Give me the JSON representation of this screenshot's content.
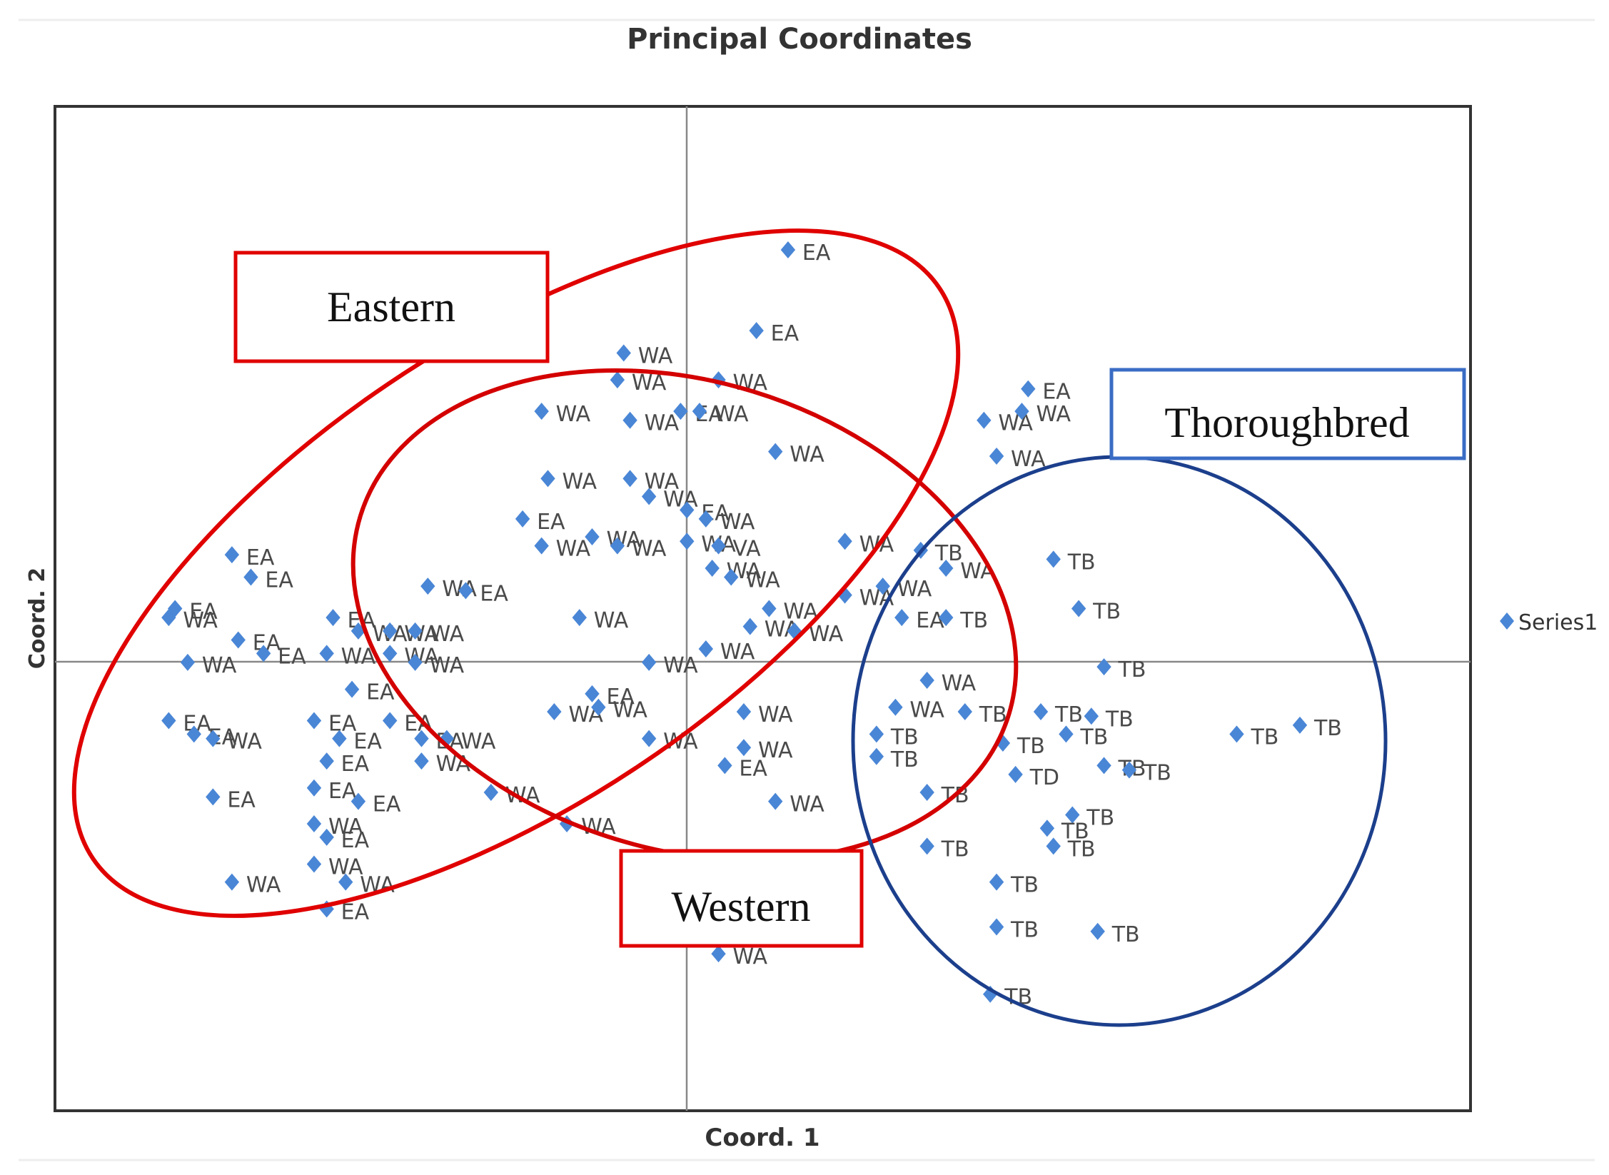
{
  "chart_data": {
    "type": "scatter",
    "title": "Principal Coordinates",
    "xlabel": "Coord. 1",
    "ylabel": "Coord. 2",
    "legend": {
      "label": "Series1",
      "placement": "right"
    },
    "xlim": [
      -1,
      1.24
    ],
    "ylim": [
      -1,
      1.24
    ],
    "grid": false,
    "marker_color": "#4a86d6",
    "label_color": "#4a4a4a",
    "series": [
      {
        "name": "Series1",
        "points": [
          {
            "x": 0.16,
            "y": 0.92,
            "label": "EA"
          },
          {
            "x": 0.11,
            "y": 0.74,
            "label": "EA"
          },
          {
            "x": -0.1,
            "y": 0.69,
            "label": "WA"
          },
          {
            "x": -0.11,
            "y": 0.63,
            "label": "WA"
          },
          {
            "x": 0.05,
            "y": 0.63,
            "label": "WA"
          },
          {
            "x": -0.23,
            "y": 0.56,
            "label": "WA"
          },
          {
            "x": -0.09,
            "y": 0.54,
            "label": "WA"
          },
          {
            "x": -0.01,
            "y": 0.56,
            "label": "EA"
          },
          {
            "x": 0.02,
            "y": 0.56,
            "label": "WA"
          },
          {
            "x": 0.14,
            "y": 0.47,
            "label": "WA"
          },
          {
            "x": -0.22,
            "y": 0.41,
            "label": "WA"
          },
          {
            "x": -0.09,
            "y": 0.41,
            "label": "WA"
          },
          {
            "x": -0.06,
            "y": 0.37,
            "label": "WA"
          },
          {
            "x": 0.0,
            "y": 0.34,
            "label": "EA"
          },
          {
            "x": 0.03,
            "y": 0.32,
            "label": "WA"
          },
          {
            "x": -0.26,
            "y": 0.32,
            "label": "EA"
          },
          {
            "x": -0.23,
            "y": 0.26,
            "label": "WA"
          },
          {
            "x": -0.15,
            "y": 0.28,
            "label": "WA"
          },
          {
            "x": -0.11,
            "y": 0.26,
            "label": "WA"
          },
          {
            "x": 0.0,
            "y": 0.27,
            "label": "WA"
          },
          {
            "x": 0.05,
            "y": 0.26,
            "label": "VA"
          },
          {
            "x": 0.04,
            "y": 0.21,
            "label": "WA"
          },
          {
            "x": 0.07,
            "y": 0.19,
            "label": "WA"
          },
          {
            "x": 0.25,
            "y": 0.27,
            "label": "WA"
          },
          {
            "x": -0.72,
            "y": 0.24,
            "label": "EA"
          },
          {
            "x": -0.69,
            "y": 0.19,
            "label": "EA"
          },
          {
            "x": -0.81,
            "y": 0.12,
            "label": "EA"
          },
          {
            "x": -0.82,
            "y": 0.1,
            "label": "WA"
          },
          {
            "x": -0.79,
            "y": 0.0,
            "label": "WA"
          },
          {
            "x": -0.71,
            "y": 0.05,
            "label": "EA"
          },
          {
            "x": -0.67,
            "y": 0.02,
            "label": "EA"
          },
          {
            "x": -0.57,
            "y": 0.02,
            "label": "WA"
          },
          {
            "x": -0.56,
            "y": 0.1,
            "label": "EA"
          },
          {
            "x": -0.52,
            "y": 0.07,
            "label": "WA"
          },
          {
            "x": -0.47,
            "y": 0.07,
            "label": "WA"
          },
          {
            "x": -0.43,
            "y": 0.07,
            "label": "WA"
          },
          {
            "x": -0.47,
            "y": 0.02,
            "label": "WA"
          },
          {
            "x": -0.43,
            "y": 0.0,
            "label": "WA"
          },
          {
            "x": -0.41,
            "y": 0.17,
            "label": "WA"
          },
          {
            "x": -0.35,
            "y": 0.16,
            "label": "EA"
          },
          {
            "x": -0.17,
            "y": 0.1,
            "label": "WA"
          },
          {
            "x": -0.06,
            "y": 0.0,
            "label": "WA"
          },
          {
            "x": 0.03,
            "y": 0.03,
            "label": "WA"
          },
          {
            "x": 0.1,
            "y": 0.08,
            "label": "WA"
          },
          {
            "x": 0.13,
            "y": 0.12,
            "label": "WA"
          },
          {
            "x": 0.17,
            "y": 0.07,
            "label": "WA"
          },
          {
            "x": 0.25,
            "y": 0.15,
            "label": "WA"
          },
          {
            "x": 0.31,
            "y": 0.17,
            "label": "WA"
          },
          {
            "x": 0.34,
            "y": 0.1,
            "label": "EA"
          },
          {
            "x": 0.41,
            "y": 0.1,
            "label": "TB"
          },
          {
            "x": 0.41,
            "y": 0.21,
            "label": "WA"
          },
          {
            "x": 0.37,
            "y": 0.25,
            "label": "TB"
          },
          {
            "x": 0.47,
            "y": 0.54,
            "label": "WA"
          },
          {
            "x": 0.49,
            "y": 0.46,
            "label": "WA"
          },
          {
            "x": 0.54,
            "y": 0.61,
            "label": "EA"
          },
          {
            "x": 0.53,
            "y": 0.56,
            "label": "WA"
          },
          {
            "x": 0.58,
            "y": 0.23,
            "label": "TB"
          },
          {
            "x": 0.62,
            "y": 0.12,
            "label": "TB"
          },
          {
            "x": 0.66,
            "y": -0.01,
            "label": "TB"
          },
          {
            "x": -0.82,
            "y": -0.13,
            "label": "EA"
          },
          {
            "x": -0.78,
            "y": -0.16,
            "label": "EA"
          },
          {
            "x": -0.75,
            "y": -0.17,
            "label": "WA"
          },
          {
            "x": -0.59,
            "y": -0.13,
            "label": "EA"
          },
          {
            "x": -0.53,
            "y": -0.06,
            "label": "EA"
          },
          {
            "x": -0.55,
            "y": -0.17,
            "label": "EA"
          },
          {
            "x": -0.47,
            "y": -0.13,
            "label": "EA"
          },
          {
            "x": -0.42,
            "y": -0.17,
            "label": "EA"
          },
          {
            "x": -0.38,
            "y": -0.17,
            "label": "WA"
          },
          {
            "x": -0.57,
            "y": -0.22,
            "label": "EA"
          },
          {
            "x": -0.75,
            "y": -0.3,
            "label": "EA"
          },
          {
            "x": -0.59,
            "y": -0.28,
            "label": "EA"
          },
          {
            "x": -0.52,
            "y": -0.31,
            "label": "EA"
          },
          {
            "x": -0.59,
            "y": -0.36,
            "label": "WA"
          },
          {
            "x": -0.57,
            "y": -0.39,
            "label": "EA"
          },
          {
            "x": -0.59,
            "y": -0.45,
            "label": "WA"
          },
          {
            "x": -0.54,
            "y": -0.49,
            "label": "WA"
          },
          {
            "x": -0.72,
            "y": -0.49,
            "label": "WA"
          },
          {
            "x": -0.57,
            "y": -0.55,
            "label": "EA"
          },
          {
            "x": -0.42,
            "y": -0.22,
            "label": "WA"
          },
          {
            "x": -0.31,
            "y": -0.29,
            "label": "WA"
          },
          {
            "x": -0.21,
            "y": -0.11,
            "label": "WA"
          },
          {
            "x": -0.15,
            "y": -0.07,
            "label": "EA"
          },
          {
            "x": -0.14,
            "y": -0.1,
            "label": "WA"
          },
          {
            "x": -0.19,
            "y": -0.36,
            "label": "WA"
          },
          {
            "x": -0.06,
            "y": -0.17,
            "label": "WA"
          },
          {
            "x": 0.09,
            "y": -0.11,
            "label": "WA"
          },
          {
            "x": 0.09,
            "y": -0.19,
            "label": "WA"
          },
          {
            "x": 0.06,
            "y": -0.23,
            "label": "EA"
          },
          {
            "x": 0.14,
            "y": -0.31,
            "label": "WA"
          },
          {
            "x": 0.05,
            "y": -0.65,
            "label": "WA"
          },
          {
            "x": 0.38,
            "y": -0.04,
            "label": "WA"
          },
          {
            "x": 0.33,
            "y": -0.1,
            "label": "WA"
          },
          {
            "x": 0.3,
            "y": -0.16,
            "label": "TB"
          },
          {
            "x": 0.3,
            "y": -0.21,
            "label": "TB"
          },
          {
            "x": 0.44,
            "y": -0.11,
            "label": "TB"
          },
          {
            "x": 0.5,
            "y": -0.18,
            "label": "TB"
          },
          {
            "x": 0.52,
            "y": -0.25,
            "label": "TD"
          },
          {
            "x": 0.56,
            "y": -0.11,
            "label": "TB"
          },
          {
            "x": 0.6,
            "y": -0.16,
            "label": "TB"
          },
          {
            "x": 0.64,
            "y": -0.12,
            "label": "TB"
          },
          {
            "x": 0.66,
            "y": -0.23,
            "label": "TB"
          },
          {
            "x": 0.7,
            "y": -0.24,
            "label": "TB"
          },
          {
            "x": 0.38,
            "y": -0.29,
            "label": "TB"
          },
          {
            "x": 0.61,
            "y": -0.34,
            "label": "TB"
          },
          {
            "x": 0.57,
            "y": -0.37,
            "label": "TB"
          },
          {
            "x": 0.58,
            "y": -0.41,
            "label": "TB"
          },
          {
            "x": 0.38,
            "y": -0.41,
            "label": "TB"
          },
          {
            "x": 0.49,
            "y": -0.49,
            "label": "TB"
          },
          {
            "x": 0.49,
            "y": -0.59,
            "label": "TB"
          },
          {
            "x": 0.65,
            "y": -0.6,
            "label": "TB"
          },
          {
            "x": 0.48,
            "y": -0.74,
            "label": "TB"
          },
          {
            "x": 0.87,
            "y": -0.16,
            "label": "TB"
          },
          {
            "x": 0.97,
            "y": -0.14,
            "label": "TB"
          }
        ]
      }
    ]
  },
  "annotations": [
    {
      "label": "Eastern",
      "box_color": "#e00000"
    },
    {
      "label": "Western",
      "box_color": "#e00000"
    },
    {
      "label": "Thoroughbred",
      "box_color": "#3a6cc4"
    }
  ],
  "ellipse_colors": {
    "eastern": "#e00000",
    "western": "#d40000",
    "thoroughbred": "#1c3f8c"
  }
}
